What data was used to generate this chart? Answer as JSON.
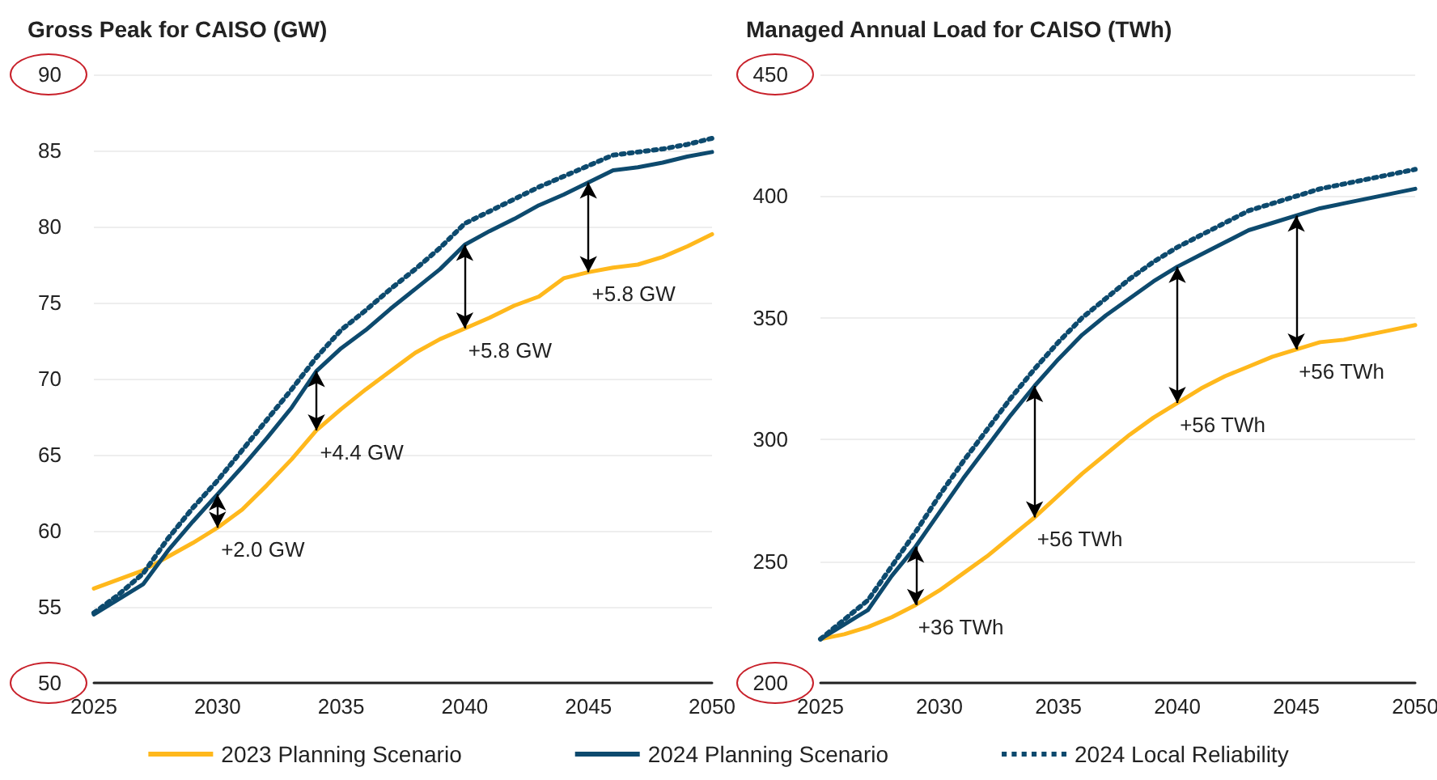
{
  "chart_data": [
    {
      "type": "line",
      "title": "Gross Peak for CAISO (GW)",
      "x": [
        2025,
        2026,
        2027,
        2028,
        2029,
        2030,
        2031,
        2032,
        2033,
        2034,
        2035,
        2036,
        2037,
        2038,
        2039,
        2040,
        2041,
        2042,
        2043,
        2044,
        2045,
        2046,
        2047,
        2048,
        2049,
        2050
      ],
      "xlim": [
        2025,
        2050
      ],
      "xticks": [
        2025,
        2030,
        2035,
        2040,
        2045,
        2050
      ],
      "ylim": [
        50,
        90
      ],
      "yticks": [
        50,
        55,
        60,
        65,
        70,
        75,
        80,
        85,
        90
      ],
      "grid": "y",
      "legend": "bottom",
      "marker": "none",
      "series": [
        {
          "name": "2023 Planning Scenario",
          "color": "#ffb81c",
          "line_style": "solid",
          "values": [
            56.2,
            56.8,
            57.4,
            58.3,
            59.2,
            60.2,
            61.4,
            63.0,
            64.7,
            66.6,
            68.0,
            69.3,
            70.5,
            71.7,
            72.6,
            73.3,
            74.0,
            74.8,
            75.4,
            76.6,
            77.0,
            77.3,
            77.5,
            78.0,
            78.7,
            79.5
          ]
        },
        {
          "name": "2024 Planning Scenario",
          "color": "#0d4a6e",
          "line_style": "solid",
          "values": [
            54.5,
            55.5,
            56.5,
            58.7,
            60.6,
            62.4,
            64.2,
            66.1,
            68.1,
            70.5,
            72.0,
            73.2,
            74.6,
            75.9,
            77.2,
            78.8,
            79.7,
            80.5,
            81.4,
            82.1,
            82.9,
            83.7,
            83.9,
            84.2,
            84.6,
            84.9
          ]
        },
        {
          "name": "2024 Local Reliability",
          "color": "#0d4a6e",
          "line_style": "dotted",
          "values": [
            54.6,
            55.8,
            57.2,
            59.5,
            61.5,
            63.3,
            65.3,
            67.3,
            69.3,
            71.4,
            73.2,
            74.5,
            75.9,
            77.2,
            78.6,
            80.2,
            81.0,
            81.8,
            82.6,
            83.3,
            84.0,
            84.7,
            84.9,
            85.1,
            85.4,
            85.8
          ]
        }
      ],
      "annotations": [
        {
          "text": "+2.0 GW",
          "x": 2030,
          "y": 60.2
        },
        {
          "text": "+4.4 GW",
          "x": 2034,
          "y": 66.6
        },
        {
          "text": "+5.8 GW",
          "x": 2040,
          "y": 73.3
        },
        {
          "text": "+5.8 GW",
          "x": 2045,
          "y": 77.0
        }
      ]
    },
    {
      "type": "line",
      "title": "Managed Annual Load for CAISO (TWh)",
      "x": [
        2025,
        2026,
        2027,
        2028,
        2029,
        2030,
        2031,
        2032,
        2033,
        2034,
        2035,
        2036,
        2037,
        2038,
        2039,
        2040,
        2041,
        2042,
        2043,
        2044,
        2045,
        2046,
        2047,
        2048,
        2049,
        2050
      ],
      "xlim": [
        2025,
        2050
      ],
      "xticks": [
        2025,
        2030,
        2035,
        2040,
        2045,
        2050
      ],
      "ylim": [
        200,
        450
      ],
      "yticks": [
        200,
        250,
        300,
        350,
        400,
        450
      ],
      "grid": "y",
      "marker": "none",
      "series": [
        {
          "color": "#ffb81c",
          "line_style": "solid",
          "values": [
            218,
            220,
            223,
            227,
            232,
            238,
            245,
            252,
            260,
            268,
            277,
            286,
            294,
            302,
            309,
            315,
            321,
            326,
            330,
            334,
            337,
            340,
            341,
            343,
            345,
            347
          ]
        },
        {
          "color": "#0d4a6e",
          "line_style": "solid",
          "values": [
            218,
            224,
            230,
            244,
            256,
            270,
            284,
            297,
            310,
            322,
            333,
            343,
            351,
            358,
            365,
            371,
            376,
            381,
            386,
            389,
            392,
            395,
            397,
            399,
            401,
            403
          ]
        },
        {
          "color": "#0d4a6e",
          "line_style": "dotted",
          "values": [
            218,
            226,
            234,
            248,
            262,
            277,
            291,
            304,
            317,
            329,
            340,
            350,
            358,
            366,
            373,
            379,
            384,
            389,
            394,
            397,
            400,
            403,
            405,
            407,
            409,
            411
          ]
        }
      ],
      "annotations": [
        {
          "text": "+36 TWh",
          "x": 2029,
          "y": 232
        },
        {
          "text": "+56 TWh",
          "x": 2034,
          "y": 268
        },
        {
          "text": "+56 TWh",
          "x": 2040,
          "y": 315
        },
        {
          "text": "+56 TWh",
          "x": 2045,
          "y": 337
        }
      ]
    }
  ]
}
